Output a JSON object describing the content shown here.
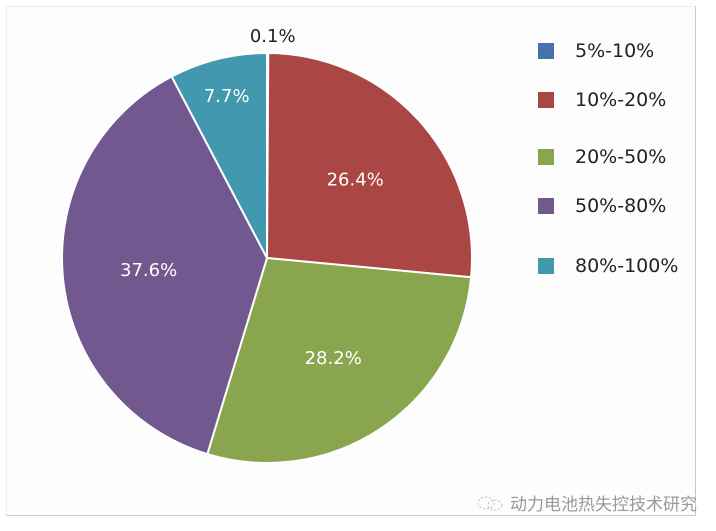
{
  "chart_data": {
    "type": "pie",
    "start_angle": "12 o'clock",
    "direction": "clockwise",
    "legend_position": "right",
    "slices": [
      {
        "label": "5%-10%",
        "value": 0.1,
        "data_label": "0.1%",
        "color": "#4572a7"
      },
      {
        "label": "10%-20%",
        "value": 26.4,
        "data_label": "26.4%",
        "color": "#aa4643"
      },
      {
        "label": "20%-50%",
        "value": 28.2,
        "data_label": "28.2%",
        "color": "#89a54e"
      },
      {
        "label": "50%-80%",
        "value": 37.6,
        "data_label": "37.6%",
        "color": "#71588f"
      },
      {
        "label": "80%-100%",
        "value": 7.7,
        "data_label": "7.7%",
        "color": "#4198af"
      }
    ]
  },
  "watermark": {
    "text": "动力电池热失控技术研究",
    "icon": "wechat-icon"
  }
}
